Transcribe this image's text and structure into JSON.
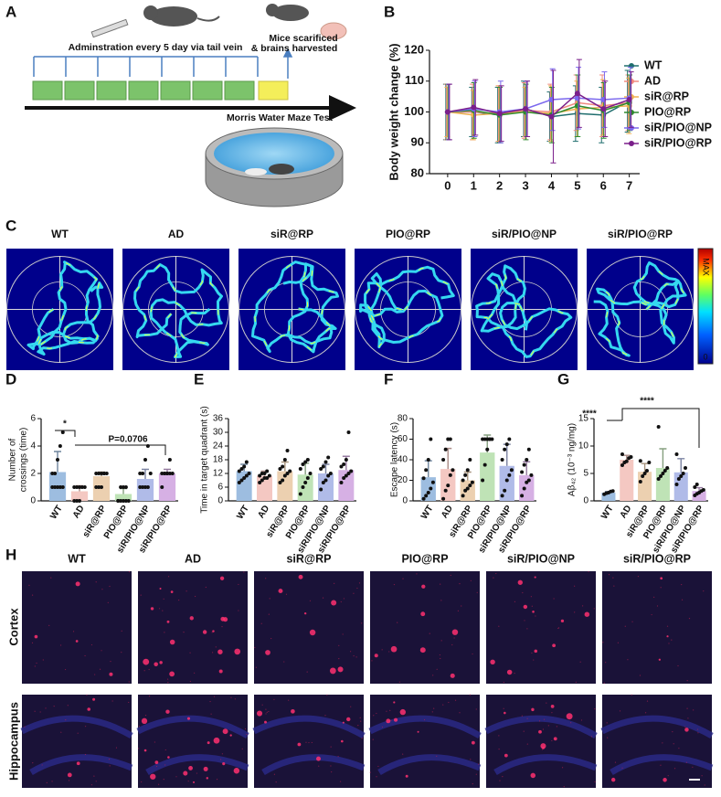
{
  "panels": {
    "letters": [
      "A",
      "B",
      "C",
      "D",
      "E",
      "F",
      "G",
      "H"
    ],
    "a": {
      "admin": "Adminstration every 5 day via tail vein",
      "harvest": [
        "Mice scarificed",
        "& brains harvested"
      ],
      "test": "Morris Water Maze Test"
    },
    "c": {
      "groups": [
        "WT",
        "AD",
        "siR@RP",
        "PIO@RP",
        "siR/PIO@NP",
        "siR/PIO@RP"
      ],
      "colorbar": [
        "MAX",
        "0"
      ]
    },
    "h": {
      "groups": [
        "WT",
        "AD",
        "siR@RP",
        "PIO@RP",
        "siR/PIO@NP",
        "siR/PIO@RP"
      ],
      "rows": [
        "Cortex",
        "Hippocampus"
      ]
    }
  },
  "chart_data": [
    {
      "type": "line",
      "ylabel": "Body weight change (%)",
      "x": [
        0,
        1,
        2,
        3,
        4,
        5,
        6,
        7
      ],
      "xlim": [
        -0.7,
        7.4
      ],
      "xticks": [
        0,
        1,
        2,
        3,
        4,
        5,
        6,
        7
      ],
      "ylim": [
        80,
        120
      ],
      "yticks": [
        80,
        90,
        100,
        110,
        120
      ],
      "legend": "right",
      "series": [
        {
          "name": "WT",
          "color": "#1f6e6e",
          "values": [
            100,
            100,
            99,
            101,
            98.5,
            99.5,
            99,
            103.5
          ],
          "errors": [
            9,
            8,
            9,
            9,
            8,
            9,
            9,
            10
          ]
        },
        {
          "name": "AD",
          "color": "#f08a80",
          "values": [
            100,
            100,
            99.5,
            100.5,
            100,
            103,
            102,
            103
          ],
          "errors": [
            9,
            9,
            9,
            9,
            9,
            9,
            10,
            9
          ]
        },
        {
          "name": "siR@RP",
          "color": "#f0b050",
          "values": [
            100,
            99,
            99.5,
            100,
            99.5,
            101,
            101.5,
            102
          ],
          "errors": [
            8,
            8,
            9,
            8,
            9,
            9,
            9,
            9
          ]
        },
        {
          "name": "PIO@RP",
          "color": "#2e8b2e",
          "values": [
            100,
            100.5,
            99,
            100,
            99,
            102,
            100.5,
            103
          ],
          "errors": [
            9,
            9,
            9,
            9,
            9,
            10,
            9,
            9
          ]
        },
        {
          "name": "siR/PIO@NP",
          "color": "#7b68ee",
          "values": [
            100,
            101,
            100,
            101,
            104,
            104.5,
            104,
            104.5
          ],
          "errors": [
            9,
            9,
            10,
            9,
            10,
            10,
            9,
            10
          ]
        },
        {
          "name": "siR/PIO@RP",
          "color": "#7a1f8a",
          "values": [
            100,
            101.5,
            99.5,
            101,
            98.5,
            106,
            101,
            104
          ],
          "errors": [
            9,
            9,
            9,
            9,
            15,
            11,
            9,
            9
          ]
        }
      ]
    },
    {
      "type": "bar",
      "ylabel": [
        "Number of",
        "crossings (time)"
      ],
      "annotations": [
        "*",
        "P=0.0706"
      ],
      "categories": [
        "WT",
        "AD",
        "siR@RP",
        "PIO@RP",
        "siR/PIO@NP",
        "siR/PIO@RP"
      ],
      "colors": [
        "#9dbde0",
        "#f4c8c2",
        "#ecd0b0",
        "#bfe3b6",
        "#b0bbe8",
        "#d6b0e4"
      ],
      "ylim": [
        0,
        6
      ],
      "yticks": [
        0,
        2,
        4,
        6
      ],
      "values": [
        2.1,
        0.7,
        1.8,
        0.5,
        1.6,
        2.0
      ],
      "errors": [
        1.5,
        0.4,
        0.3,
        0.4,
        0.7,
        0.3
      ],
      "points": [
        [
          1,
          1,
          1,
          1,
          1,
          2,
          2,
          3,
          4,
          5
        ],
        [
          0,
          0,
          0,
          1,
          1,
          1,
          1,
          1
        ],
        [
          1,
          1,
          1,
          2,
          2,
          2,
          2,
          2,
          2
        ],
        [
          0,
          0,
          0,
          0,
          0,
          0,
          1,
          1,
          1
        ],
        [
          1,
          1,
          1,
          1,
          2,
          2,
          2,
          3,
          4
        ],
        [
          1,
          2,
          2,
          2,
          2,
          2,
          2,
          2,
          3
        ]
      ]
    },
    {
      "type": "bar",
      "ylabel": [
        "Time in target quadrant (s)"
      ],
      "categories": [
        "WT",
        "AD",
        "siR@RP",
        "PIO@RP",
        "siR/PIO@NP",
        "siR/PIO@RP"
      ],
      "colors": [
        "#9dbde0",
        "#f4c8c2",
        "#ecd0b0",
        "#bfe3b6",
        "#b0bbe8",
        "#d6b0e4"
      ],
      "ylim": [
        0,
        36
      ],
      "yticks": [
        0,
        6,
        12,
        18,
        24,
        30,
        36
      ],
      "values": [
        13,
        11,
        13,
        11.5,
        12,
        13.5
      ],
      "errors": [
        3,
        2,
        4,
        5,
        4,
        6
      ],
      "points": [
        [
          8,
          9,
          10,
          11,
          12,
          13,
          14,
          15,
          17
        ],
        [
          8,
          9,
          10,
          10,
          11,
          11,
          12,
          12,
          13
        ],
        [
          8,
          9,
          11,
          12,
          13,
          14,
          15,
          18,
          22
        ],
        [
          3,
          6,
          8,
          10,
          12,
          14,
          16,
          17,
          18
        ],
        [
          5,
          8,
          9,
          11,
          12,
          14,
          15,
          17,
          19
        ],
        [
          8,
          10,
          11,
          12,
          13,
          15,
          16,
          18,
          30
        ]
      ]
    },
    {
      "type": "bar",
      "ylabel": [
        "Escape latency (s)"
      ],
      "categories": [
        "WT",
        "AD",
        "siR@RP",
        "PIO@RP",
        "siR/PIO@NP",
        "siR/PIO@RP"
      ],
      "colors": [
        "#9dbde0",
        "#f4c8c2",
        "#ecd0b0",
        "#bfe3b6",
        "#b0bbe8",
        "#d6b0e4"
      ],
      "ylim": [
        0,
        80
      ],
      "yticks": [
        0,
        20,
        40,
        60,
        80
      ],
      "values": [
        23,
        31,
        20,
        47,
        34,
        25
      ],
      "errors": [
        16,
        20,
        8,
        17,
        21,
        13
      ],
      "points": [
        [
          2,
          5,
          8,
          12,
          18,
          22,
          30,
          40,
          60
        ],
        [
          2,
          10,
          15,
          25,
          30,
          40,
          50,
          60,
          60
        ],
        [
          5,
          10,
          12,
          15,
          18,
          20,
          25,
          30,
          40
        ],
        [
          20,
          35,
          50,
          60,
          60,
          60,
          60,
          60,
          60
        ],
        [
          5,
          10,
          20,
          25,
          30,
          40,
          50,
          55,
          60
        ],
        [
          5,
          12,
          18,
          20,
          25,
          28,
          35,
          40,
          50
        ]
      ]
    },
    {
      "type": "bar",
      "ylabel": [
        "Aβ₄₂ (10⁻³ ng/mg)"
      ],
      "annotations": [
        "****",
        "****"
      ],
      "categories": [
        "WT",
        "AD",
        "siR@RP",
        "PIO@RP",
        "siR/PIO@NP",
        "siR/PIO@RP"
      ],
      "colors": [
        "#9dbde0",
        "#f4c8c2",
        "#ecd0b0",
        "#bfe3b6",
        "#b0bbe8",
        "#d6b0e4"
      ],
      "ylim": [
        0,
        15
      ],
      "yticks": [
        0,
        5,
        10,
        15
      ],
      "values": [
        1.5,
        7.5,
        5.3,
        6.0,
        5.2,
        1.8
      ],
      "errors": [
        0.2,
        0.8,
        1.5,
        3.5,
        2.5,
        0.6
      ],
      "points": [
        [
          1.2,
          1.4,
          1.5,
          1.7,
          1.8
        ],
        [
          6.5,
          7,
          7.2,
          7.8,
          8,
          8.5
        ],
        [
          3.5,
          4.5,
          5,
          5.5,
          7,
          7.3
        ],
        [
          4,
          4.5,
          5,
          5.5,
          6,
          13.5
        ],
        [
          3,
          4,
          4.5,
          5,
          6,
          8.5
        ],
        [
          1,
          1.3,
          1.5,
          1.8,
          2,
          2.5,
          3
        ]
      ]
    }
  ]
}
